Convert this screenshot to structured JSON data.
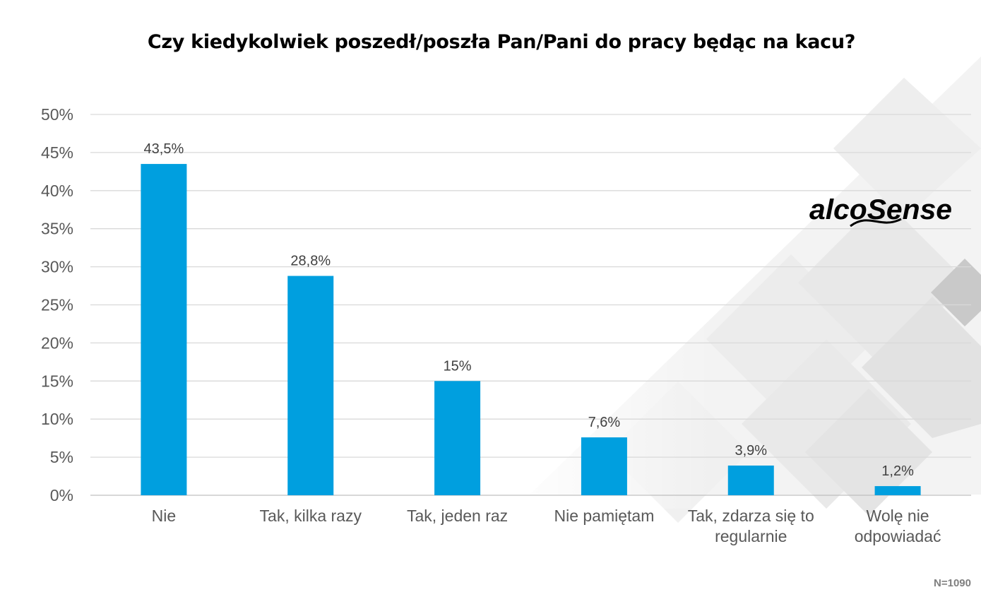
{
  "chart_data": {
    "type": "bar",
    "title": "Czy kiedykolwiek poszedł/poszła Pan/Pani do pracy będąc na kacu?",
    "categories": [
      "Nie",
      "Tak, kilka razy",
      "Tak, jeden raz",
      "Nie pamiętam",
      "Tak, zdarza się to regularnie",
      "Wolę nie odpowiadać"
    ],
    "category_lines": [
      [
        "Nie"
      ],
      [
        "Tak, kilka razy"
      ],
      [
        "Tak, jeden raz"
      ],
      [
        "Nie pamiętam"
      ],
      [
        "Tak, zdarza się to",
        "regularnie"
      ],
      [
        "Wolę nie",
        "odpowiadać"
      ]
    ],
    "values": [
      43.5,
      28.8,
      15,
      7.6,
      3.9,
      1.2
    ],
    "data_labels": [
      "43,5%",
      "28,8%",
      "15%",
      "7,6%",
      "3,9%",
      "1,2%"
    ],
    "ylim": [
      0,
      50
    ],
    "yticks": [
      "0%",
      "5%",
      "10%",
      "15%",
      "20%",
      "25%",
      "30%",
      "35%",
      "40%",
      "45%",
      "50%"
    ],
    "xlabel": "",
    "ylabel": "",
    "grid": true,
    "legend": "none",
    "bar_color": "#009FDF"
  },
  "logo_text": "alcoSense",
  "sample_size": "N=1090"
}
